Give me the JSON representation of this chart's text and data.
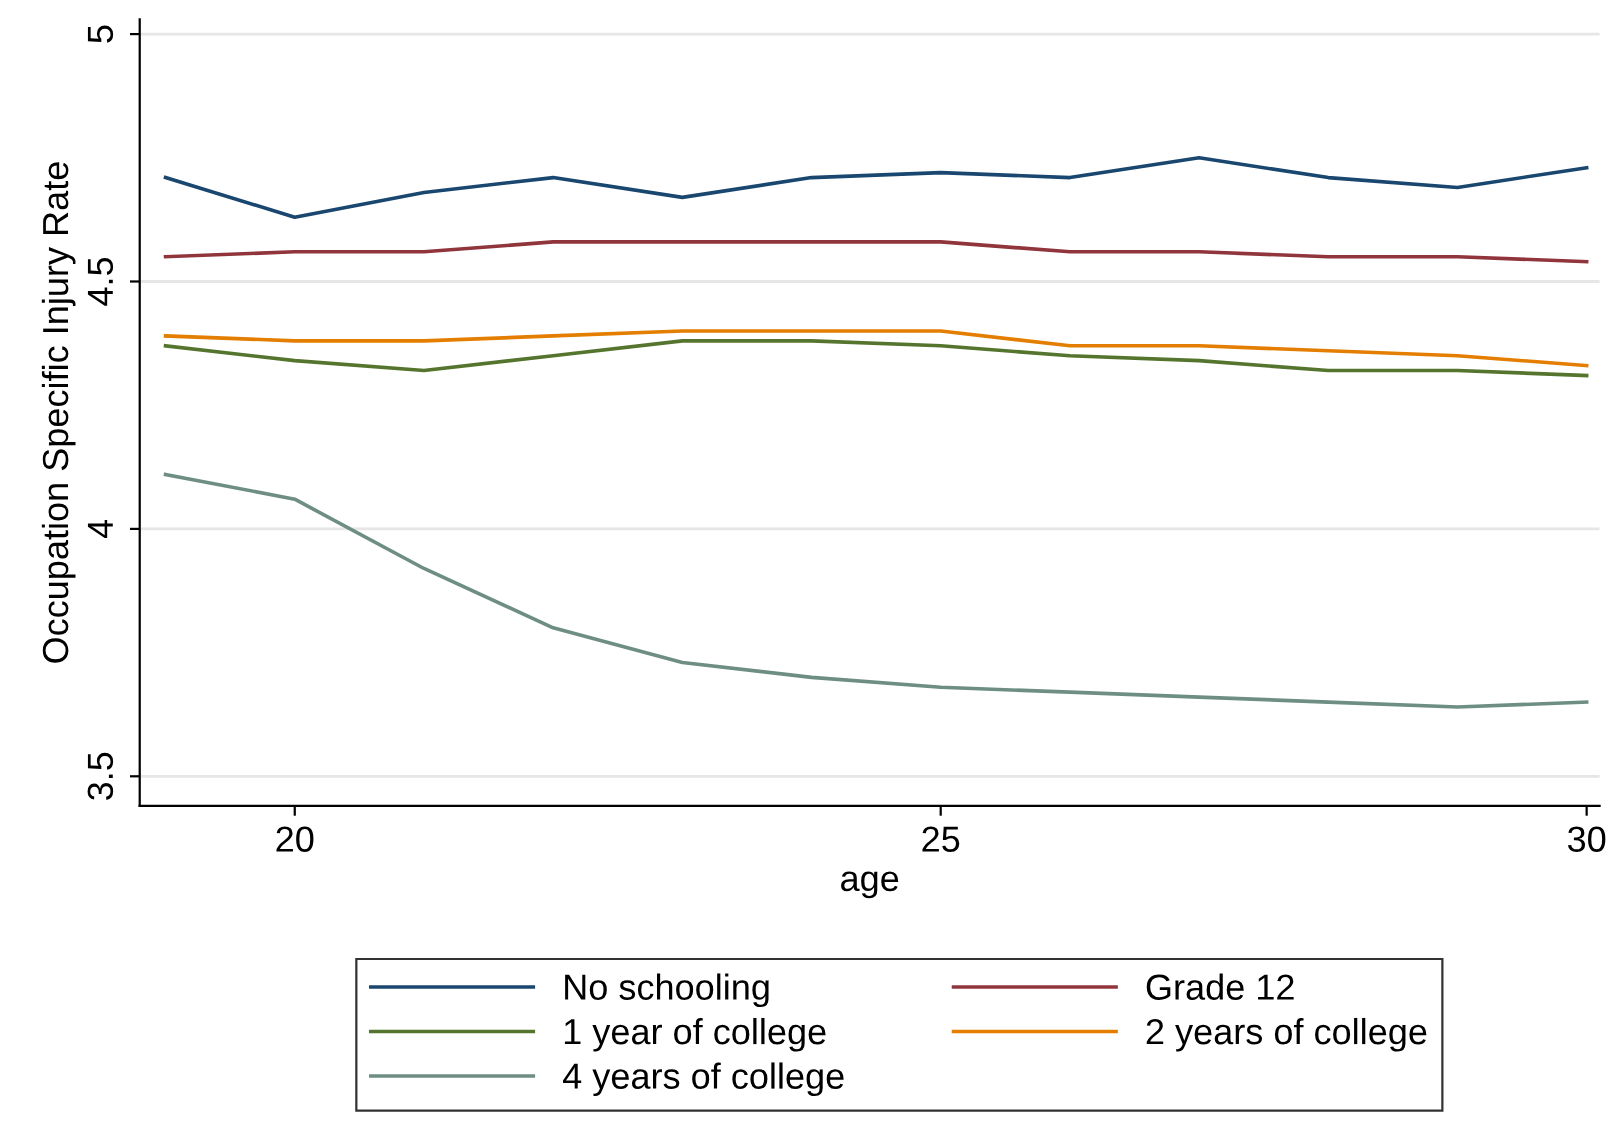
{
  "chart_data": {
    "type": "line",
    "xlabel": "age",
    "ylabel": "Occupation Specific Injury Rate",
    "x": [
      19,
      20,
      21,
      22,
      23,
      24,
      25,
      26,
      27,
      28,
      29,
      30
    ],
    "series": [
      {
        "name": "No schooling",
        "color": "#1a476f",
        "values": [
          4.71,
          4.63,
          4.68,
          4.71,
          4.67,
          4.71,
          4.72,
          4.71,
          4.75,
          4.71,
          4.69,
          4.73
        ]
      },
      {
        "name": "Grade 12",
        "color": "#90353b",
        "values": [
          4.55,
          4.56,
          4.56,
          4.58,
          4.58,
          4.58,
          4.58,
          4.56,
          4.56,
          4.55,
          4.55,
          4.54
        ]
      },
      {
        "name": "1 year of college",
        "color": "#55752f",
        "values": [
          4.37,
          4.34,
          4.32,
          4.35,
          4.38,
          4.38,
          4.37,
          4.35,
          4.34,
          4.32,
          4.32,
          4.31
        ]
      },
      {
        "name": "2 years of college",
        "color": "#e37e00",
        "values": [
          4.39,
          4.38,
          4.38,
          4.39,
          4.4,
          4.4,
          4.4,
          4.37,
          4.37,
          4.36,
          4.35,
          4.33
        ]
      },
      {
        "name": "4 years of college",
        "color": "#6e8e84",
        "values": [
          4.11,
          4.06,
          3.92,
          3.8,
          3.73,
          3.7,
          3.68,
          3.67,
          3.66,
          3.65,
          3.64,
          3.65
        ]
      }
    ],
    "xlim": [
      18.8,
      30.1
    ],
    "ylim": [
      3.44,
      5.03
    ],
    "xticks": [
      20,
      25,
      30
    ],
    "yticks": [
      3.5,
      4,
      4.5,
      5
    ],
    "grid": "y",
    "legend": "bottom",
    "marker": "none",
    "line_style": "solid"
  }
}
